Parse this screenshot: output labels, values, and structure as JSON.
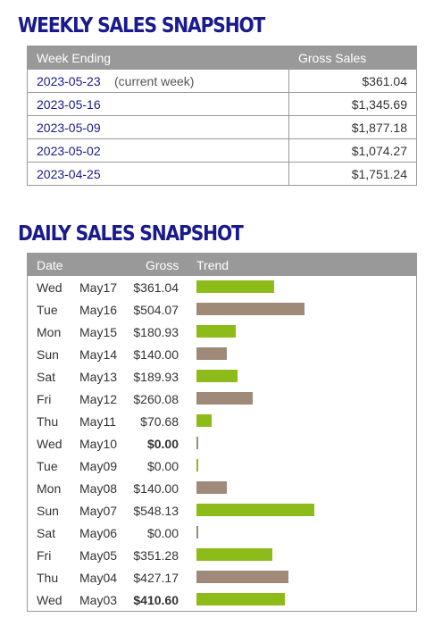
{
  "weekly": {
    "title": "WEEKLY SALES SNAPSHOT",
    "headers": {
      "week_ending": "Week Ending",
      "gross_sales": "Gross Sales"
    },
    "rows": [
      {
        "date": "2023-05-23",
        "note": "(current week)",
        "amount": "$361.04"
      },
      {
        "date": "2023-05-16",
        "note": "",
        "amount": "$1,345.69"
      },
      {
        "date": "2023-05-09",
        "note": "",
        "amount": "$1,877.18"
      },
      {
        "date": "2023-05-02",
        "note": "",
        "amount": "$1,074.27"
      },
      {
        "date": "2023-04-25",
        "note": "",
        "amount": "$1,751.24"
      }
    ]
  },
  "daily": {
    "title": "DAILY SALES SNAPSHOT",
    "headers": {
      "date": "Date",
      "gross": "Gross",
      "trend": "Trend"
    },
    "colors": {
      "green": "#8cbb1a",
      "brown": "#9f8a7a"
    },
    "rows": [
      {
        "day": "Wed",
        "md": "May17",
        "gross": "$361.04",
        "value": 361.04,
        "bold": false,
        "color": "green"
      },
      {
        "day": "Tue",
        "md": "May16",
        "gross": "$504.07",
        "value": 504.07,
        "bold": false,
        "color": "brown"
      },
      {
        "day": "Mon",
        "md": "May15",
        "gross": "$180.93",
        "value": 180.93,
        "bold": false,
        "color": "green"
      },
      {
        "day": "Sun",
        "md": "May14",
        "gross": "$140.00",
        "value": 140.0,
        "bold": false,
        "color": "brown"
      },
      {
        "day": "Sat",
        "md": "May13",
        "gross": "$189.93",
        "value": 189.93,
        "bold": false,
        "color": "green"
      },
      {
        "day": "Fri",
        "md": "May12",
        "gross": "$260.08",
        "value": 260.08,
        "bold": false,
        "color": "brown"
      },
      {
        "day": "Thu",
        "md": "May11",
        "gross": "$70.68",
        "value": 70.68,
        "bold": false,
        "color": "green"
      },
      {
        "day": "Wed",
        "md": "May10",
        "gross": "$0.00",
        "value": 0,
        "bold": true,
        "color": "brown"
      },
      {
        "day": "Tue",
        "md": "May09",
        "gross": "$0.00",
        "value": 0,
        "bold": false,
        "color": "green"
      },
      {
        "day": "Mon",
        "md": "May08",
        "gross": "$140.00",
        "value": 140.0,
        "bold": false,
        "color": "brown"
      },
      {
        "day": "Sun",
        "md": "May07",
        "gross": "$548.13",
        "value": 548.13,
        "bold": false,
        "color": "green"
      },
      {
        "day": "Sat",
        "md": "May06",
        "gross": "$0.00",
        "value": 0,
        "bold": false,
        "color": "brown"
      },
      {
        "day": "Fri",
        "md": "May05",
        "gross": "$351.28",
        "value": 351.28,
        "bold": false,
        "color": "green"
      },
      {
        "day": "Thu",
        "md": "May04",
        "gross": "$427.17",
        "value": 427.17,
        "bold": false,
        "color": "brown"
      },
      {
        "day": "Wed",
        "md": "May03",
        "gross": "$410.60",
        "value": 410.6,
        "bold": true,
        "color": "green"
      }
    ]
  }
}
